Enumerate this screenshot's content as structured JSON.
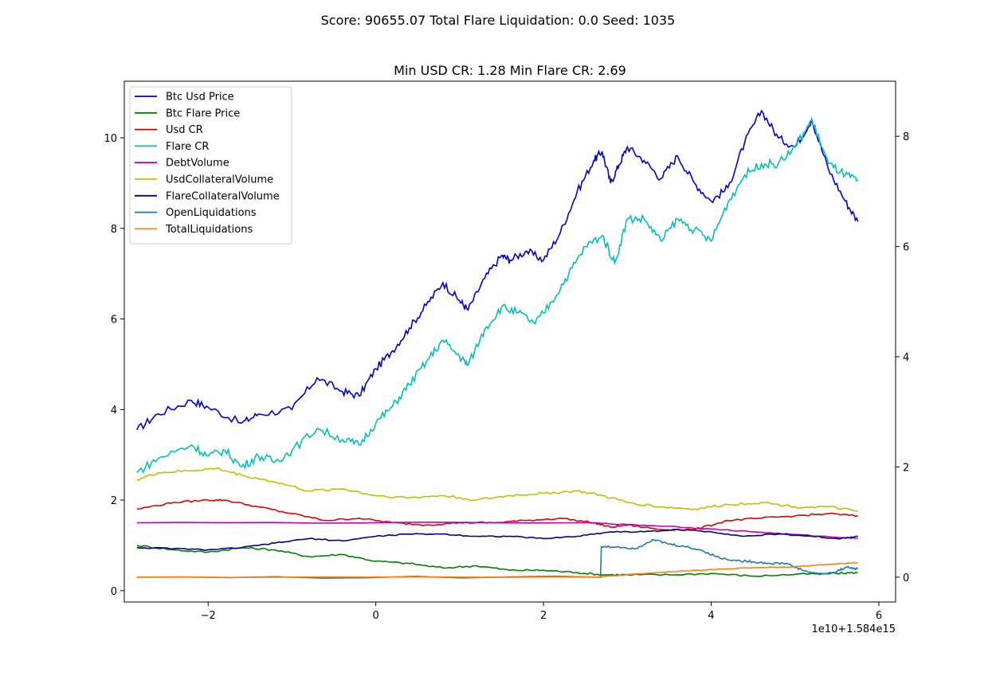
{
  "chart_data": {
    "type": "line",
    "suptitle": "Score: 90655.07 Total Flare Liquidation: 0.0 Seed: 1035",
    "title": "Min USD CR: 1.28 Min Flare CR: 2.69",
    "x_offset_label": "1e10+1.584e15",
    "xlim": [
      -3.0,
      6.2
    ],
    "ylim_left": [
      -0.25,
      11.25
    ],
    "ylim_right": [
      -0.45,
      9.0
    ],
    "xticks": [
      -2,
      0,
      2,
      4,
      6
    ],
    "yticks_left": [
      0,
      2,
      4,
      6,
      8,
      10
    ],
    "yticks_right": [
      0,
      2,
      4,
      6,
      8
    ],
    "legend_position": "upper-left",
    "series": [
      {
        "name": "Btc Usd Price",
        "color": "#0000cc",
        "axis": "left",
        "x": [
          -2.85,
          -2.6,
          -2.2,
          -2.0,
          -1.6,
          -1.4,
          -1.0,
          -0.7,
          -0.4,
          -0.2,
          0.0,
          0.2,
          0.4,
          0.6,
          0.8,
          1.0,
          1.1,
          1.3,
          1.5,
          1.6,
          1.8,
          2.0,
          2.2,
          2.4,
          2.6,
          2.7,
          2.8,
          2.9,
          3.0,
          3.2,
          3.4,
          3.6,
          3.8,
          4.0,
          4.2,
          4.4,
          4.6,
          4.8,
          5.0,
          5.2,
          5.4,
          5.6,
          5.75
        ],
        "y": [
          3.55,
          3.9,
          4.2,
          4.05,
          3.7,
          3.9,
          4.0,
          4.7,
          4.4,
          4.3,
          4.9,
          5.3,
          5.8,
          6.3,
          6.8,
          6.4,
          6.2,
          6.9,
          7.4,
          7.3,
          7.5,
          7.3,
          7.9,
          8.8,
          9.5,
          9.7,
          9.0,
          9.4,
          9.8,
          9.5,
          9.1,
          9.6,
          9.0,
          8.6,
          8.9,
          9.9,
          10.6,
          10.0,
          9.8,
          10.4,
          9.3,
          8.6,
          8.15
        ]
      },
      {
        "name": "Btc Flare Price",
        "color": "#008000",
        "axis": "left",
        "x": [
          -2.85,
          -2.4,
          -2.0,
          -1.6,
          -1.2,
          -0.8,
          -0.4,
          0.0,
          0.4,
          0.8,
          1.2,
          1.6,
          2.0,
          2.4,
          2.7,
          3.0,
          3.5,
          4.0,
          4.5,
          5.0,
          5.5,
          5.75
        ],
        "y": [
          1.0,
          0.9,
          0.85,
          0.95,
          0.9,
          0.75,
          0.8,
          0.65,
          0.6,
          0.5,
          0.55,
          0.45,
          0.45,
          0.4,
          0.35,
          0.35,
          0.35,
          0.38,
          0.32,
          0.36,
          0.38,
          0.4
        ]
      },
      {
        "name": "Usd CR",
        "color": "#e00000",
        "axis": "left",
        "x": [
          -2.85,
          -2.4,
          -2.0,
          -1.8,
          -1.4,
          -1.0,
          -0.6,
          -0.2,
          0.2,
          0.6,
          1.0,
          1.4,
          1.8,
          2.2,
          2.6,
          2.8,
          3.0,
          3.4,
          3.8,
          4.2,
          4.6,
          5.0,
          5.4,
          5.75
        ],
        "y": [
          1.8,
          1.95,
          2.0,
          2.0,
          1.85,
          1.7,
          1.55,
          1.6,
          1.5,
          1.45,
          1.5,
          1.5,
          1.55,
          1.6,
          1.5,
          1.4,
          1.45,
          1.35,
          1.35,
          1.55,
          1.6,
          1.65,
          1.7,
          1.65
        ]
      },
      {
        "name": "Flare CR",
        "color": "#00bfbf",
        "axis": "right",
        "x": [
          -2.85,
          -2.6,
          -2.2,
          -2.0,
          -1.8,
          -1.6,
          -1.4,
          -1.2,
          -1.0,
          -0.7,
          -0.4,
          -0.2,
          0.0,
          0.2,
          0.4,
          0.6,
          0.8,
          1.0,
          1.1,
          1.3,
          1.5,
          1.7,
          1.9,
          2.1,
          2.3,
          2.5,
          2.7,
          2.85,
          3.0,
          3.2,
          3.4,
          3.6,
          3.8,
          4.0,
          4.2,
          4.4,
          4.6,
          4.8,
          5.0,
          5.2,
          5.4,
          5.6,
          5.75
        ],
        "y": [
          1.9,
          2.15,
          2.4,
          2.2,
          2.3,
          2.0,
          2.2,
          2.1,
          2.3,
          2.7,
          2.5,
          2.4,
          2.8,
          3.1,
          3.5,
          3.9,
          4.3,
          4.0,
          3.85,
          4.5,
          4.9,
          4.8,
          4.6,
          5.0,
          5.5,
          6.0,
          6.2,
          5.7,
          6.5,
          6.5,
          6.1,
          6.5,
          6.3,
          6.1,
          6.8,
          7.3,
          7.5,
          7.5,
          7.8,
          8.3,
          7.5,
          7.3,
          7.2
        ]
      },
      {
        "name": "DebtVolume",
        "color": "#bf00bf",
        "axis": "left",
        "x": [
          -2.85,
          2.5,
          3.0,
          3.5,
          4.0,
          4.5,
          5.0,
          5.5,
          5.75
        ],
        "y": [
          1.5,
          1.5,
          1.46,
          1.42,
          1.36,
          1.3,
          1.24,
          1.18,
          1.16
        ]
      },
      {
        "name": "UsdCollateralVolume",
        "color": "#bfbf00",
        "axis": "left",
        "x": [
          -2.85,
          -2.6,
          -2.2,
          -1.9,
          -1.6,
          -1.2,
          -0.8,
          -0.4,
          0.0,
          0.4,
          0.8,
          1.2,
          1.6,
          2.0,
          2.4,
          2.7,
          3.0,
          3.4,
          3.8,
          4.2,
          4.6,
          5.0,
          5.4,
          5.75
        ],
        "y": [
          2.45,
          2.6,
          2.65,
          2.7,
          2.55,
          2.4,
          2.2,
          2.25,
          2.1,
          2.05,
          2.1,
          2.0,
          2.1,
          2.15,
          2.2,
          2.1,
          1.95,
          1.85,
          1.8,
          1.9,
          1.95,
          1.85,
          1.85,
          1.75
        ]
      },
      {
        "name": "FlareCollateralVolume",
        "color": "#00008b",
        "axis": "left",
        "x": [
          -2.85,
          -2.4,
          -2.0,
          -1.6,
          -1.2,
          -0.8,
          -0.4,
          0.0,
          0.4,
          0.8,
          1.2,
          1.6,
          2.0,
          2.4,
          2.8,
          3.2,
          3.6,
          4.0,
          4.4,
          4.8,
          5.2,
          5.5,
          5.75
        ],
        "y": [
          0.95,
          0.93,
          0.9,
          0.95,
          1.05,
          1.15,
          1.1,
          1.2,
          1.25,
          1.25,
          1.2,
          1.2,
          1.15,
          1.2,
          1.3,
          1.3,
          1.35,
          1.3,
          1.2,
          1.25,
          1.2,
          1.15,
          1.2
        ]
      },
      {
        "name": "OpenLiquidations",
        "color": "#1f77b4",
        "axis": "right",
        "x": [
          -2.85,
          2.68,
          2.69,
          2.9,
          3.1,
          3.3,
          3.5,
          3.7,
          3.9,
          4.1,
          4.3,
          4.5,
          4.7,
          4.9,
          5.1,
          5.3,
          5.5,
          5.6,
          5.75
        ],
        "y": [
          0.0,
          0.0,
          0.55,
          0.55,
          0.52,
          0.68,
          0.6,
          0.55,
          0.48,
          0.35,
          0.3,
          0.28,
          0.25,
          0.25,
          0.12,
          0.05,
          0.1,
          0.18,
          0.15
        ]
      },
      {
        "name": "TotalLiquidations",
        "color": "#ff7f0e",
        "axis": "right",
        "x": [
          -2.85,
          2.68,
          3.0,
          3.5,
          4.0,
          4.5,
          5.0,
          5.5,
          5.75
        ],
        "y": [
          0.0,
          0.0,
          0.05,
          0.1,
          0.14,
          0.17,
          0.19,
          0.24,
          0.26
        ]
      }
    ]
  }
}
